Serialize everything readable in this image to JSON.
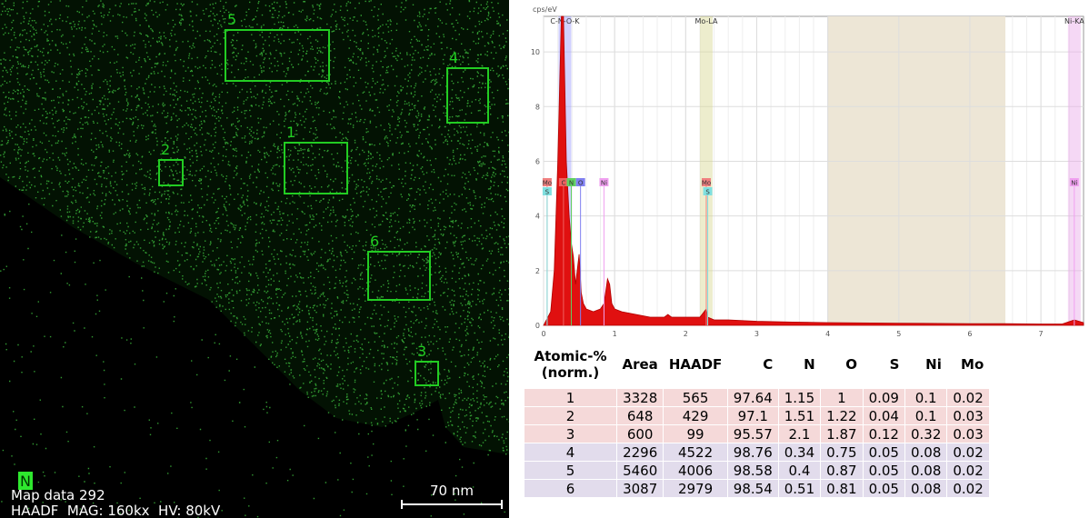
{
  "map": {
    "element": "N",
    "info_line_1": "Map data 292",
    "info_line_2": "HAADF  MAG: 160kx  HV: 80kV",
    "scale_bar": "70 nm",
    "regions": [
      {
        "label": "1"
      },
      {
        "label": "2"
      },
      {
        "label": "3"
      },
      {
        "label": "4"
      },
      {
        "label": "5"
      },
      {
        "label": "6"
      }
    ]
  },
  "chart_data": {
    "type": "area",
    "y_label": "cps/eV",
    "color": "#e01010",
    "x": [
      0,
      0.1,
      0.15,
      0.2,
      0.25,
      0.28,
      0.32,
      0.36,
      0.39,
      0.42,
      0.45,
      0.5,
      0.53,
      0.56,
      0.6,
      0.7,
      0.8,
      0.85,
      0.9,
      0.93,
      0.96,
      1.0,
      1.1,
      1.3,
      1.5,
      1.7,
      1.75,
      1.8,
      2.0,
      2.2,
      2.29,
      2.31,
      2.4,
      2.6,
      3,
      3.5,
      4,
      5,
      6,
      6.5,
      7,
      7.3,
      7.47,
      7.6
    ],
    "values": [
      0,
      0.5,
      2,
      6,
      11.3,
      11.3,
      6,
      4,
      3,
      2.5,
      1.5,
      2.6,
      1.2,
      0.8,
      0.6,
      0.5,
      0.6,
      0.8,
      1.7,
      1.5,
      0.8,
      0.6,
      0.5,
      0.4,
      0.3,
      0.3,
      0.4,
      0.3,
      0.3,
      0.3,
      0.6,
      0.3,
      0.2,
      0.2,
      0.15,
      0.12,
      0.1,
      0.08,
      0.06,
      0.06,
      0.05,
      0.05,
      0.2,
      0.1
    ],
    "xlim": [
      0,
      7.6
    ],
    "ylim": [
      0,
      11.3
    ],
    "xticks": [
      0,
      1,
      2,
      3,
      4,
      5,
      6,
      7
    ],
    "yticks": [
      0,
      2,
      4,
      6,
      8,
      10
    ],
    "grid": true,
    "roi": [
      4.0,
      6.5
    ],
    "line_labels": [
      {
        "label": "C-N-O-K",
        "x": 0.3
      },
      {
        "label": "Mo-LA",
        "x": 2.29
      },
      {
        "label": "Ni-KA",
        "x": 7.47
      }
    ],
    "markers": [
      {
        "label": "Mo",
        "x": 0.05
      },
      {
        "label": "S",
        "x": 0.05
      },
      {
        "label": "C",
        "x": 0.28
      },
      {
        "label": "N",
        "x": 0.39
      },
      {
        "label": "O",
        "x": 0.52
      },
      {
        "label": "Ni",
        "x": 0.85
      },
      {
        "label": "Mo",
        "x": 2.29
      },
      {
        "label": "S",
        "x": 2.31
      },
      {
        "label": "Ni",
        "x": 7.47
      }
    ]
  },
  "table": {
    "header": [
      "Atomic-% (norm.)",
      "Area",
      "HAADF",
      "C",
      "N",
      "O",
      "S",
      "Ni",
      "Mo"
    ],
    "rows": [
      [
        "1",
        "3328",
        "565",
        "97.64",
        "1.15",
        "1",
        "0.09",
        "0.1",
        "0.02"
      ],
      [
        "2",
        "648",
        "429",
        "97.1",
        "1.51",
        "1.22",
        "0.04",
        "0.1",
        "0.03"
      ],
      [
        "3",
        "600",
        "99",
        "95.57",
        "2.1",
        "1.87",
        "0.12",
        "0.32",
        "0.03"
      ],
      [
        "4",
        "2296",
        "4522",
        "98.76",
        "0.34",
        "0.75",
        "0.05",
        "0.08",
        "0.02"
      ],
      [
        "5",
        "5460",
        "4006",
        "98.58",
        "0.4",
        "0.87",
        "0.05",
        "0.08",
        "0.02"
      ],
      [
        "6",
        "3087",
        "2979",
        "98.54",
        "0.51",
        "0.81",
        "0.05",
        "0.08",
        "0.02"
      ]
    ]
  }
}
